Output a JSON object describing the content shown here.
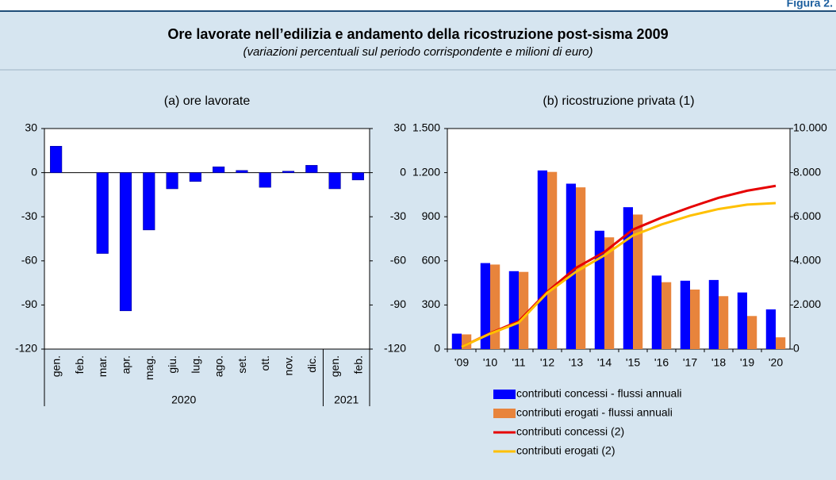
{
  "header": {
    "figure": "Figura 2.",
    "title": "Ore lavorate nell’edilizia e andamento della ricostruzione post-sisma 2009",
    "subtitle": "(variazioni percentuali sul periodo corrispondente e milioni di euro)"
  },
  "chart_data": [
    {
      "type": "bar",
      "title": "(a) ore lavorate",
      "categories": [
        "gen.",
        "feb.",
        "mar.",
        "apr.",
        "mag.",
        "giu.",
        "lug.",
        "ago.",
        "set.",
        "ott.",
        "nov.",
        "dic.",
        "gen.",
        "feb."
      ],
      "groups": [
        {
          "label": "2020",
          "span": 12
        },
        {
          "label": "2021",
          "span": 2
        }
      ],
      "values": [
        18,
        0,
        -55,
        -94,
        -39,
        -11,
        -6,
        4,
        1.5,
        -10,
        1,
        5,
        -11,
        -5
      ],
      "color": "#0000ff",
      "ylim": [
        -120,
        30
      ],
      "yticks": [
        -120,
        -90,
        -60,
        -30,
        0,
        30
      ],
      "y2lim": [
        -120,
        30
      ],
      "y2ticks": [
        -120,
        -90,
        -60,
        -30,
        0,
        30
      ]
    },
    {
      "type": "bar",
      "title": "(b) ricostruzione privata (1)",
      "categories": [
        "'09",
        "'10",
        "'11",
        "'12",
        "'13",
        "'14",
        "'15",
        "'16",
        "'17",
        "'18",
        "'19",
        "'20"
      ],
      "series": [
        {
          "name": "contributi concessi - flussi annuali",
          "color": "#0000ff",
          "type": "bar",
          "values": [
            105,
            585,
            530,
            1215,
            1125,
            805,
            965,
            500,
            465,
            470,
            385,
            270
          ]
        },
        {
          "name": "contributi erogati - flussi annuali",
          "color": "#e8843c",
          "type": "bar",
          "values": [
            100,
            575,
            525,
            1205,
            1100,
            760,
            915,
            455,
            405,
            360,
            225,
            80
          ]
        },
        {
          "name": "contributi concessi (2)",
          "color": "#e60000",
          "type": "line",
          "axis": "y2",
          "values": [
            100,
            720,
            1260,
            2600,
            3680,
            4400,
            5420,
            5960,
            6430,
            6860,
            7180,
            7400
          ]
        },
        {
          "name": "contributi erogati (2)",
          "color": "#ffc000",
          "type": "line",
          "axis": "y2",
          "values": [
            100,
            700,
            1200,
            2550,
            3500,
            4250,
            5150,
            5650,
            6050,
            6350,
            6550,
            6620
          ]
        }
      ],
      "ylim": [
        0,
        1500
      ],
      "yticks": [
        0,
        300,
        600,
        900,
        {
          "value": 1200,
          "label": "1.200"
        },
        {
          "value": 1500,
          "label": "1.500"
        }
      ],
      "y2lim": [
        0,
        10000
      ],
      "y2ticks": [
        0,
        {
          "value": 2000,
          "label": "2.000"
        },
        {
          "value": 4000,
          "label": "4.000"
        },
        {
          "value": 6000,
          "label": "6.000"
        },
        {
          "value": 8000,
          "label": "8.000"
        },
        {
          "value": 10000,
          "label": "10.000"
        }
      ],
      "legend": "bottom"
    }
  ]
}
